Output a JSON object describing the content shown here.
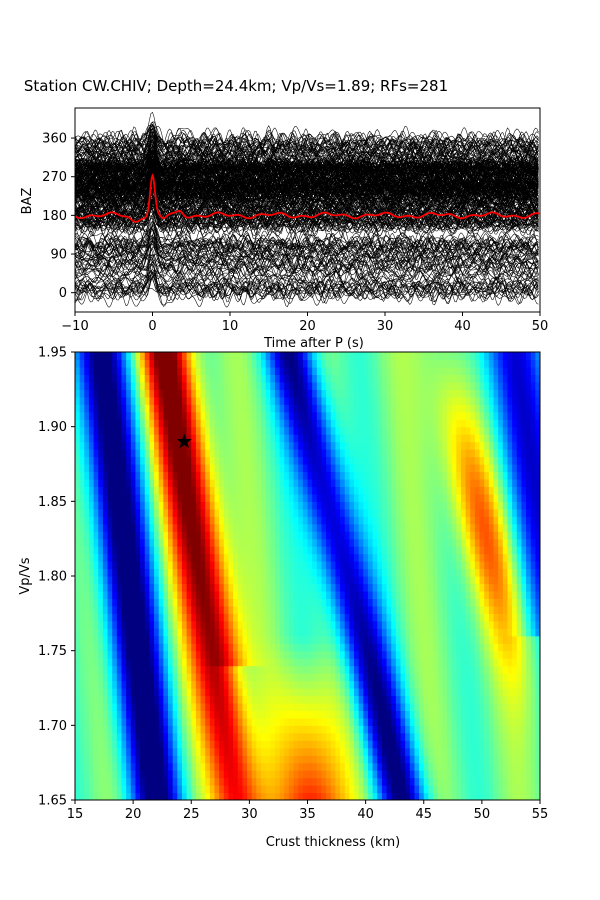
{
  "figure": {
    "title": "Station CW.CHIV; Depth=24.4km; Vp/Vs=1.89; RFs=281"
  },
  "chart_data": [
    {
      "type": "line",
      "panel": "receiver-functions",
      "xlabel": "Time after P (s)",
      "ylabel": "BAZ",
      "xlim": [
        -10,
        50
      ],
      "ylim": [
        -45,
        430
      ],
      "xticks": [
        -10,
        0,
        10,
        20,
        30,
        40,
        50
      ],
      "yticks": [
        0,
        90,
        180,
        270,
        360
      ],
      "trace_count": 281,
      "trace_color": "#000000",
      "stack_color": "#ff0000",
      "stack_baseline": 180,
      "stack_peak": {
        "x": 0,
        "y": 270
      },
      "grid": false
    },
    {
      "type": "heatmap",
      "panel": "h-k-stack",
      "xlabel": "Crust thickness (km)",
      "ylabel": "Vp/Vs",
      "xlim": [
        15,
        55
      ],
      "ylim": [
        1.65,
        1.95
      ],
      "xticks": [
        15,
        20,
        25,
        30,
        35,
        40,
        45,
        50,
        55
      ],
      "yticks": [
        "1.65",
        "1.70",
        "1.75",
        "1.80",
        "1.85",
        "1.90",
        "1.95"
      ],
      "colormap": "jet",
      "best_fit": {
        "x": 24.4,
        "y": 1.89,
        "marker": "star"
      },
      "grid": false
    }
  ]
}
